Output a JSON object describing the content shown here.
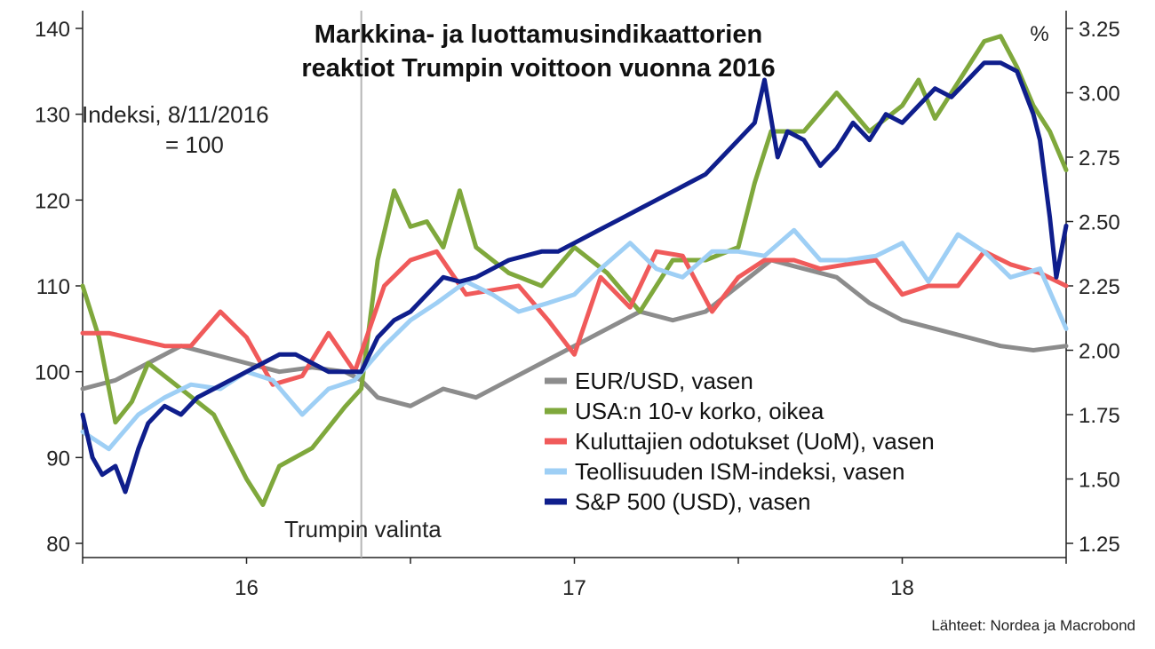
{
  "chart_data": {
    "type": "line",
    "title_lines": [
      "Markkina- ja luottamusindikaattorien",
      "reaktiot Trumpin voittoon vuonna 2016"
    ],
    "note_lines": [
      "Indeksi, 8/11/2016",
      "= 100"
    ],
    "right_unit": "%",
    "annotation": "Trumpin valinta",
    "source": "Lähteet: Nordea ja Macrobond",
    "x_ticks": [
      "16",
      "17",
      "18"
    ],
    "left_ticks": [
      "80",
      "90",
      "100",
      "110",
      "120",
      "130",
      "140"
    ],
    "right_ticks": [
      "1.25",
      "1.50",
      "1.75",
      "2.00",
      "2.25",
      "2.50",
      "2.75",
      "3.00",
      "3.25"
    ],
    "xlim": [
      2015.5,
      2018.5
    ],
    "ylim_left": [
      80,
      140
    ],
    "ylim_right": [
      1.25,
      3.25
    ],
    "event_x": 2016.35,
    "grid": false,
    "legend_position": "bottom-center",
    "series": [
      {
        "name": "EUR/USD, vasen",
        "axis": "left",
        "color": "#8c8c8c",
        "x": [
          2015.5,
          2015.6,
          2015.7,
          2015.8,
          2015.9,
          2016.0,
          2016.1,
          2016.2,
          2016.3,
          2016.35,
          2016.4,
          2016.5,
          2016.6,
          2016.7,
          2016.8,
          2016.9,
          2017.0,
          2017.1,
          2017.2,
          2017.3,
          2017.4,
          2017.5,
          2017.6,
          2017.7,
          2017.8,
          2017.9,
          2018.0,
          2018.1,
          2018.2,
          2018.3,
          2018.4,
          2018.5
        ],
        "y": [
          98,
          99,
          101,
          103,
          102,
          101,
          100,
          100.5,
          100,
          99,
          97,
          96,
          98,
          97,
          99,
          101,
          103,
          105,
          107,
          106,
          107,
          110,
          113,
          112,
          111,
          108,
          106,
          105,
          104,
          103,
          102.5,
          103
        ]
      },
      {
        "name": "USA:n 10-v korko, oikea",
        "axis": "right",
        "color": "#7fa83c",
        "x": [
          2015.5,
          2015.55,
          2015.6,
          2015.65,
          2015.7,
          2015.8,
          2015.9,
          2016.0,
          2016.05,
          2016.1,
          2016.2,
          2016.3,
          2016.35,
          2016.4,
          2016.45,
          2016.5,
          2016.55,
          2016.6,
          2016.65,
          2016.7,
          2016.75,
          2016.8,
          2016.9,
          2017.0,
          2017.1,
          2017.2,
          2017.3,
          2017.4,
          2017.5,
          2017.55,
          2017.6,
          2017.7,
          2017.8,
          2017.9,
          2018.0,
          2018.05,
          2018.1,
          2018.2,
          2018.25,
          2018.3,
          2018.35,
          2018.4,
          2018.45,
          2018.5
        ],
        "y": [
          2.25,
          2.05,
          1.72,
          1.8,
          1.95,
          1.85,
          1.75,
          1.5,
          1.4,
          1.55,
          1.62,
          1.78,
          1.85,
          2.35,
          2.62,
          2.48,
          2.5,
          2.4,
          2.62,
          2.4,
          2.35,
          2.3,
          2.25,
          2.4,
          2.3,
          2.15,
          2.35,
          2.35,
          2.4,
          2.65,
          2.85,
          2.85,
          3.0,
          2.85,
          2.95,
          3.05,
          2.9,
          3.1,
          3.2,
          3.22,
          3.1,
          2.95,
          2.85,
          2.7
        ]
      },
      {
        "name": "Kuluttajien odotukset (UoM), vasen",
        "axis": "left",
        "color": "#f05a5a",
        "x": [
          2015.5,
          2015.58,
          2015.75,
          2015.83,
          2015.92,
          2016.0,
          2016.08,
          2016.17,
          2016.25,
          2016.33,
          2016.42,
          2016.5,
          2016.58,
          2016.67,
          2016.75,
          2016.83,
          2016.92,
          2017.0,
          2017.08,
          2017.17,
          2017.25,
          2017.33,
          2017.42,
          2017.5,
          2017.58,
          2017.67,
          2017.75,
          2017.83,
          2017.92,
          2018.0,
          2018.08,
          2018.17,
          2018.25,
          2018.33,
          2018.42,
          2018.5
        ],
        "y": [
          104.5,
          104.5,
          103,
          103,
          107,
          104,
          98.5,
          99.5,
          104.5,
          100,
          110,
          113,
          114,
          109,
          109.5,
          110,
          106,
          102,
          111,
          107.5,
          114,
          113.5,
          107,
          111,
          113,
          113,
          112,
          112.5,
          113,
          109,
          110,
          110,
          114,
          112.5,
          111.5,
          110
        ]
      },
      {
        "name": "Teollisuuden ISM-indeksi, vasen",
        "axis": "left",
        "color": "#9ecff5",
        "x": [
          2015.5,
          2015.58,
          2015.67,
          2015.75,
          2015.83,
          2015.92,
          2016.0,
          2016.08,
          2016.17,
          2016.25,
          2016.33,
          2016.42,
          2016.5,
          2016.58,
          2016.67,
          2016.75,
          2016.83,
          2016.92,
          2017.0,
          2017.08,
          2017.17,
          2017.25,
          2017.33,
          2017.42,
          2017.5,
          2017.58,
          2017.67,
          2017.75,
          2017.83,
          2017.92,
          2018.0,
          2018.08,
          2018.17,
          2018.25,
          2018.33,
          2018.42,
          2018.5
        ],
        "y": [
          93,
          91,
          95,
          97,
          98.5,
          98,
          100,
          99,
          95,
          98,
          99,
          103,
          106,
          108,
          110.5,
          109,
          107,
          108,
          109,
          112,
          115,
          112,
          111,
          114,
          114,
          113.5,
          116.5,
          113,
          113,
          113.5,
          115,
          110.5,
          116,
          114,
          111,
          112,
          105
        ]
      },
      {
        "name": "S&P 500 (USD), vasen",
        "axis": "left",
        "color": "#0f1e8c",
        "x": [
          2015.5,
          2015.53,
          2015.56,
          2015.6,
          2015.63,
          2015.67,
          2015.7,
          2015.75,
          2015.8,
          2015.85,
          2015.9,
          2015.95,
          2016.0,
          2016.05,
          2016.1,
          2016.15,
          2016.2,
          2016.25,
          2016.3,
          2016.35,
          2016.4,
          2016.45,
          2016.5,
          2016.55,
          2016.6,
          2016.65,
          2016.7,
          2016.75,
          2016.8,
          2016.85,
          2016.9,
          2016.95,
          2017.0,
          2017.05,
          2017.1,
          2017.15,
          2017.2,
          2017.25,
          2017.3,
          2017.35,
          2017.4,
          2017.45,
          2017.5,
          2017.55,
          2017.58,
          2017.62,
          2017.65,
          2017.7,
          2017.75,
          2017.8,
          2017.85,
          2017.9,
          2017.95,
          2018.0,
          2018.05,
          2018.1,
          2018.15,
          2018.2,
          2018.25,
          2018.3,
          2018.35,
          2018.4,
          2018.42,
          2018.45,
          2018.47,
          2018.5
        ],
        "y": [
          95,
          90,
          88,
          89,
          86,
          91,
          94,
          96,
          95,
          97,
          98,
          99,
          100,
          101,
          102,
          102,
          101,
          100,
          100,
          100,
          104,
          106,
          107,
          109,
          111,
          110.5,
          111,
          112,
          113,
          113.5,
          114,
          114,
          115,
          116,
          117,
          118,
          119,
          120,
          121,
          122,
          123,
          125,
          127,
          129,
          134,
          125,
          128,
          127,
          124,
          126,
          129,
          127,
          130,
          129,
          131,
          133,
          132,
          134,
          136,
          136,
          135,
          130,
          127,
          118,
          111,
          117
        ]
      }
    ]
  }
}
